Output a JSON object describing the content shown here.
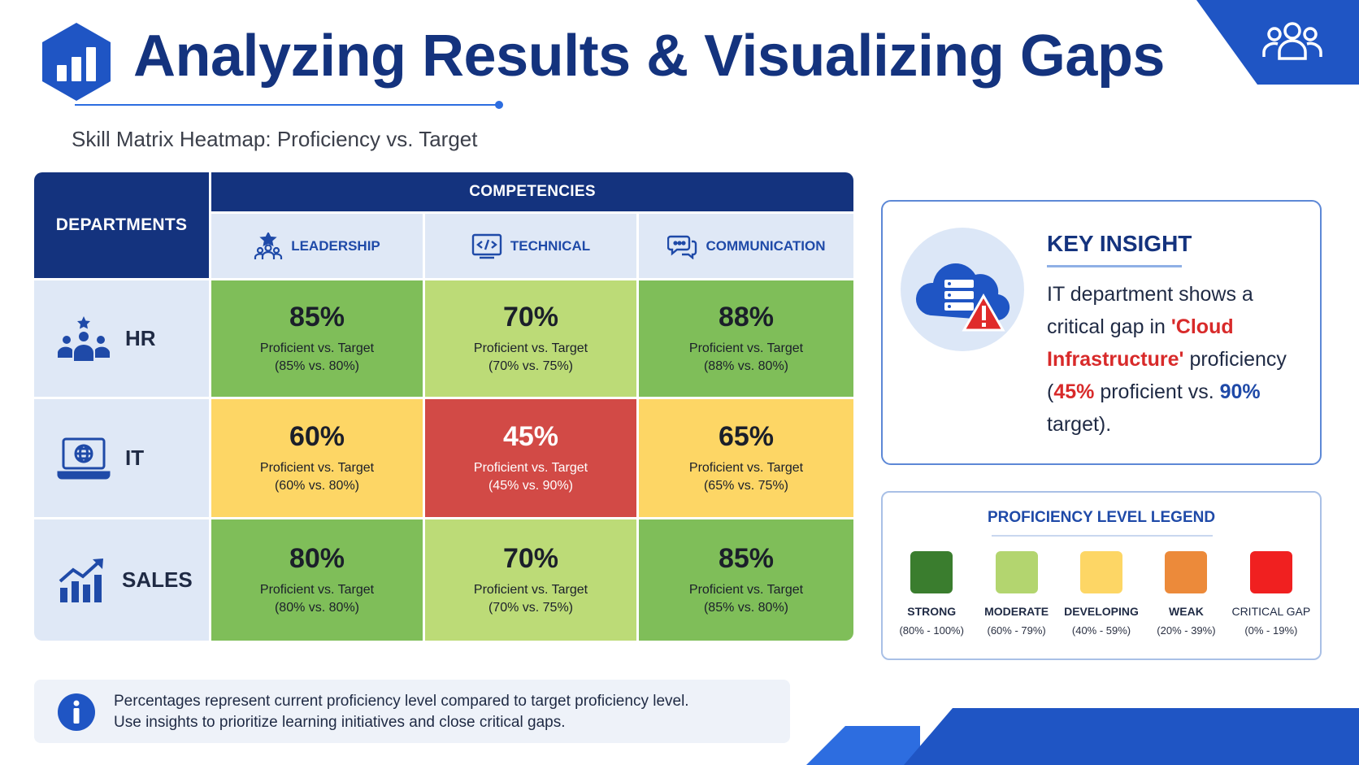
{
  "page": {
    "title": "Analyzing Results & Visualizing Gaps",
    "subtitle": "Skill Matrix Heatmap: Proficiency vs. Target"
  },
  "matrix": {
    "departments_header": "DEPARTMENTS",
    "competencies_header": "COMPETENCIES",
    "competencies": [
      {
        "label": "LEADERSHIP",
        "icon": "leadership-icon"
      },
      {
        "label": "TECHNICAL",
        "icon": "code-icon"
      },
      {
        "label": "COMMUNICATION",
        "icon": "chat-icon"
      }
    ],
    "rows": [
      {
        "department": "HR",
        "icon": "team-star-icon",
        "cells": [
          {
            "pct": "85%",
            "label": "Proficient vs. Target",
            "detail": "(85% vs. 80%)",
            "color": "#7fbe59"
          },
          {
            "pct": "70%",
            "label": "Proficient vs. Target",
            "detail": "(70% vs. 75%)",
            "color": "#bcdb77"
          },
          {
            "pct": "88%",
            "label": "Proficient vs. Target",
            "detail": "(88% vs. 80%)",
            "color": "#7fbe59"
          }
        ]
      },
      {
        "department": "IT",
        "icon": "laptop-globe-icon",
        "cells": [
          {
            "pct": "60%",
            "label": "Proficient vs. Target",
            "detail": "(60% vs. 80%)",
            "color": "#fdd665"
          },
          {
            "pct": "45%",
            "label": "Proficient vs. Target",
            "detail": "(45% vs. 90%)",
            "color": "#d24a46"
          },
          {
            "pct": "65%",
            "label": "Proficient vs. Target",
            "detail": "(65% vs. 75%)",
            "color": "#fdd665"
          }
        ]
      },
      {
        "department": "SALES",
        "icon": "growth-chart-icon",
        "cells": [
          {
            "pct": "80%",
            "label": "Proficient vs. Target",
            "detail": "(80% vs. 80%)",
            "color": "#7fbe59"
          },
          {
            "pct": "70%",
            "label": "Proficient vs. Target",
            "detail": "(70% vs. 75%)",
            "color": "#bcdb77"
          },
          {
            "pct": "85%",
            "label": "Proficient vs. Target",
            "detail": "(85% vs. 80%)",
            "color": "#7fbe59"
          }
        ]
      }
    ]
  },
  "insight": {
    "title": "KEY INSIGHT",
    "line1": "IT department shows a critical gap in",
    "highlight": "'Cloud Infrastructure'",
    "line2_pre": "proficiency (",
    "actual_pct": "45%",
    "line2_mid": " proficient vs. ",
    "target_pct": "90%",
    "line2_post": " target).",
    "icon": "cloud-server-warning-icon"
  },
  "legend": {
    "title": "PROFICIENCY LEVEL LEGEND",
    "items": [
      {
        "name": "STRONG",
        "range": "(80% - 100%)",
        "color": "#3a7d2e"
      },
      {
        "name": "MODERATE",
        "range": "(60% - 79%)",
        "color": "#b3d56f"
      },
      {
        "name": "DEVELOPING",
        "range": "(40% - 59%)",
        "color": "#fdd665"
      },
      {
        "name": "WEAK",
        "range": "(20% - 39%)",
        "color": "#ec8a3a"
      },
      {
        "name": "CRITICAL GAP",
        "range": "(0% - 19%)",
        "color": "#f02020"
      }
    ]
  },
  "footnote": {
    "line1": "Percentages represent current proficiency level compared to target proficiency level.",
    "line2": "Use insights to prioritize learning initiatives and close critical gaps."
  },
  "colors": {
    "brand": "#14337e",
    "accent": "#1f55c4"
  }
}
